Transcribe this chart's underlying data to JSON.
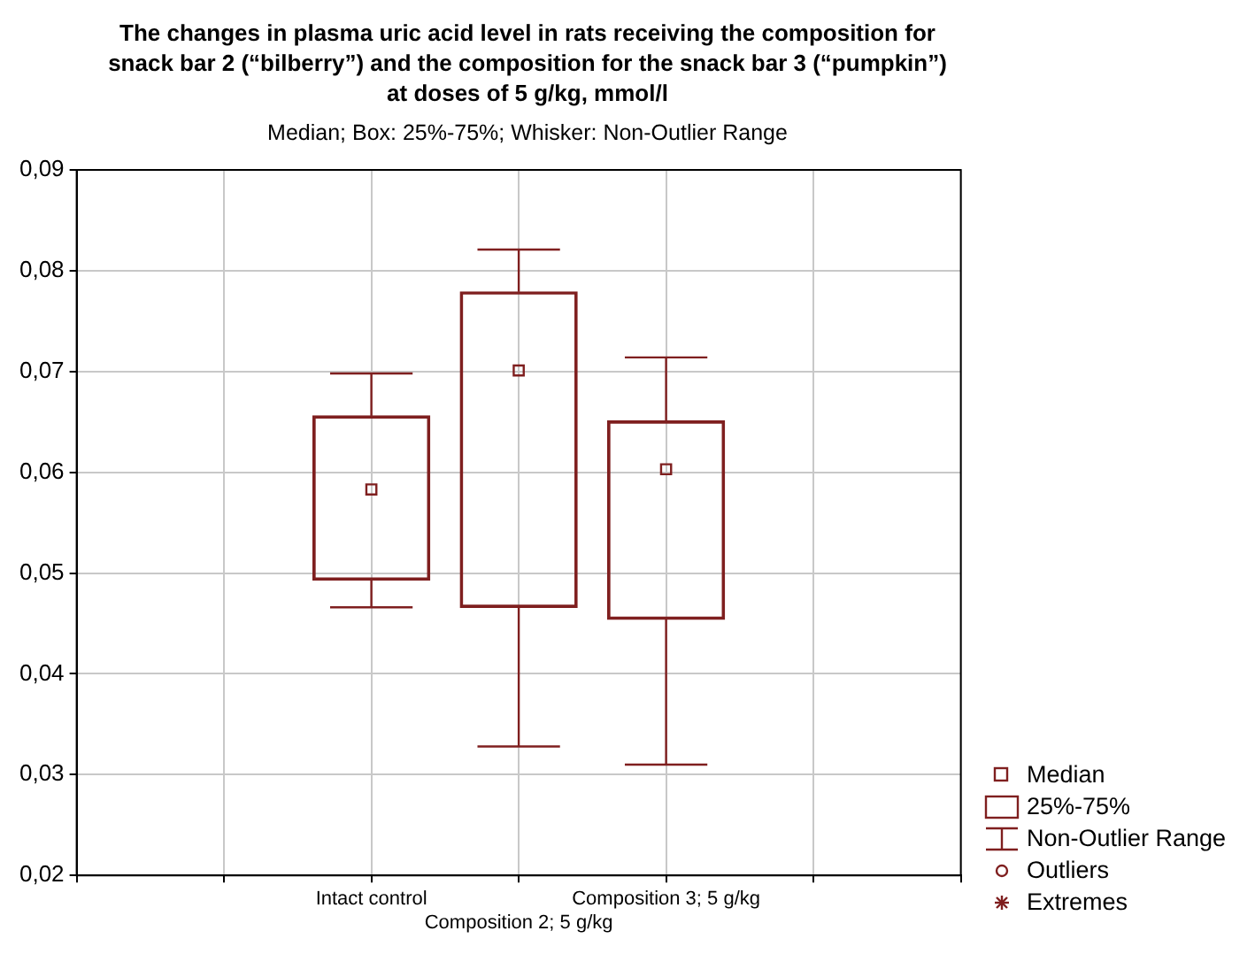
{
  "chart_data": {
    "type": "box",
    "title": "The changes in plasma uric acid level in rats receiving the composition for snack bar 2 (“bilberry”) and the composition for the snack bar 3 (“pumpkin”) at doses of 5 g/kg, mmol/l",
    "subtitle": "Median; Box: 25%-75%; Whisker: Non-Outlier Range",
    "categories": [
      null,
      null,
      "Intact control",
      "Composition 2; 5 g/kg",
      "Composition 3; 5 g/kg",
      null,
      null
    ],
    "color": "#7f1f1f",
    "boxes": [
      null,
      null,
      {
        "low": 0.0466,
        "q1": 0.0493,
        "median": 0.0583,
        "q3": 0.0656,
        "high": 0.0698
      },
      {
        "low": 0.0328,
        "q1": 0.0466,
        "median": 0.0701,
        "q3": 0.0779,
        "high": 0.0821
      },
      {
        "low": 0.031,
        "q1": 0.0454,
        "median": 0.0603,
        "q3": 0.0651,
        "high": 0.0714
      },
      null,
      null
    ],
    "ylim": [
      0.02,
      0.09
    ],
    "yticks": [
      {
        "value": 0.02,
        "label": "0,02"
      },
      {
        "value": 0.03,
        "label": "0,03"
      },
      {
        "value": 0.04,
        "label": "0,04"
      },
      {
        "value": 0.05,
        "label": "0,05"
      },
      {
        "value": 0.06,
        "label": "0,06"
      },
      {
        "value": 0.07,
        "label": "0,07"
      },
      {
        "value": 0.08,
        "label": "0,08"
      },
      {
        "value": 0.09,
        "label": "0,09"
      }
    ],
    "grid": true,
    "marker": "square",
    "annotations": [
      "Median",
      "25%-75%",
      "Non-Outlier Range",
      "Outliers",
      "Extremes"
    ]
  }
}
